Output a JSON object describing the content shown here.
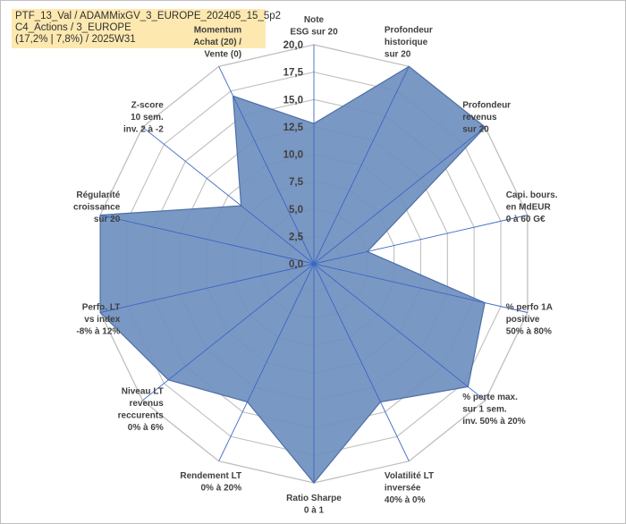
{
  "title": {
    "line1": "PTF_13_Val / ADAMMixGV_3_EUROPE_202405_15_5p2",
    "line2": "C4_Actions / 3_EUROPE",
    "line3": "(17,2% | 7,8%) / 2025W31"
  },
  "colors": {
    "fill": "#6f8fbf",
    "stroke": "#4d6fa6",
    "grid": "#bfbfbf",
    "spoke": "#3a66c4",
    "title_bg": "#fde9b0"
  },
  "chart_data": {
    "type": "radar",
    "rmax": 20,
    "ticks": [
      "0,0",
      "2,5",
      "5,0",
      "7,5",
      "10,0",
      "12,5",
      "15,0",
      "17,5",
      "20,0"
    ],
    "axes": [
      {
        "label": [
          "Note",
          "ESG sur 20"
        ],
        "value": 12.8
      },
      {
        "label": [
          "Profondeur",
          "historique",
          "sur 20"
        ],
        "value": 20
      },
      {
        "label": [
          "Profondeur",
          "revenus",
          "sur 20"
        ],
        "value": 20
      },
      {
        "label": [
          "Capi. bours.",
          "en MdEUR",
          "0 à 60 G€"
        ],
        "value": 5
      },
      {
        "label": [
          "% perfo 1A",
          "positive",
          "50% à 80%"
        ],
        "value": 16
      },
      {
        "label": [
          "% perte max.",
          "sur 1 sem.",
          "inv. 50% à 20%"
        ],
        "value": 18
      },
      {
        "label": [
          "Volatilité LT",
          "inversée",
          "40% à 0%"
        ],
        "value": 14
      },
      {
        "label": [
          "Ratio Sharpe",
          "0 à 1"
        ],
        "value": 20
      },
      {
        "label": [
          "Rendement LT",
          "0% à 20%"
        ],
        "value": 14
      },
      {
        "label": [
          "Niveau LT",
          "revenus",
          "reccurents",
          "0% à 6%"
        ],
        "value": 17
      },
      {
        "label": [
          "Perfo. LT",
          "vs index",
          "-8% à 12%"
        ],
        "value": 20
      },
      {
        "label": [
          "Régularité",
          "croissance",
          "sur 20"
        ],
        "value": 20
      },
      {
        "label": [
          "Z-score",
          "10 sem.",
          "inv. 2 à -2"
        ],
        "value": 8.5
      },
      {
        "label": [
          "Momentum",
          "Achat (20) /",
          "Vente (0)"
        ],
        "value": 17
      }
    ]
  }
}
